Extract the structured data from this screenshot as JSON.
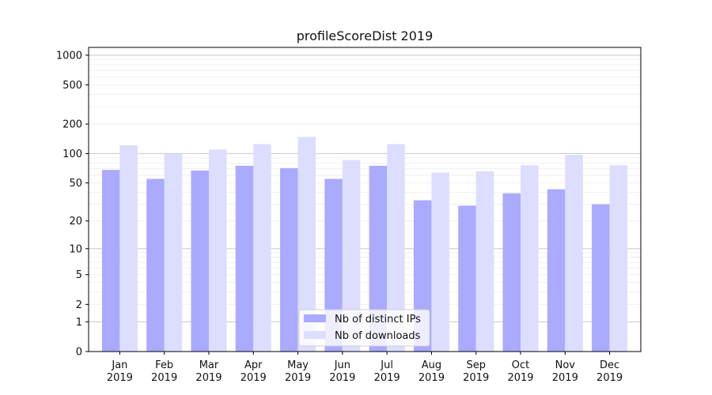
{
  "chart_data": {
    "type": "bar",
    "title": "profileScoreDist 2019",
    "xlabel": "",
    "ylabel": "",
    "scale": "symlog",
    "ylim": [
      0,
      1200
    ],
    "grid": true,
    "legend_placement": "bottom-center",
    "categories": [
      "Jan\n2019",
      "Feb\n2019",
      "Mar\n2019",
      "Apr\n2019",
      "May\n2019",
      "Jun\n2019",
      "Jul\n2019",
      "Aug\n2019",
      "Sep\n2019",
      "Oct\n2019",
      "Nov\n2019",
      "Dec\n2019"
    ],
    "series": [
      {
        "name": "Nb of distinct IPs",
        "color": "#aaaaff",
        "values": [
          68,
          55,
          67,
          75,
          71,
          55,
          75,
          33,
          29,
          39,
          43,
          30
        ]
      },
      {
        "name": "Nb of downloads",
        "color": "#ddddff",
        "values": [
          122,
          99,
          110,
          125,
          148,
          86,
          125,
          64,
          66,
          76,
          97,
          76
        ]
      }
    ],
    "y_ticks": [
      0,
      1,
      2,
      5,
      10,
      20,
      50,
      100,
      200,
      500,
      1000
    ]
  }
}
